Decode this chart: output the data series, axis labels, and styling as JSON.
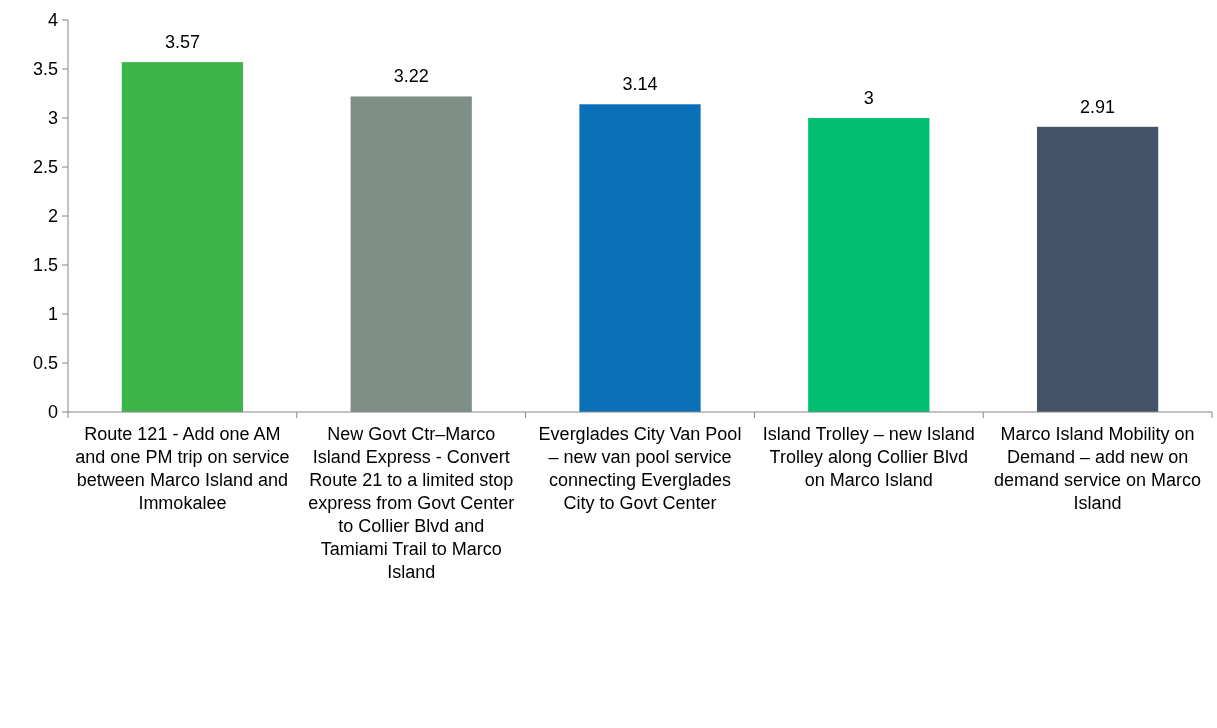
{
  "chart_data": {
    "type": "bar",
    "categories": [
      "Route 121 - Add one AM and one PM trip on service between Marco Island and Immokalee",
      "New Govt Ctr–Marco Island Express - Convert Route 21 to a limited stop express from Govt Center to Collier Blvd and Tamiami Trail to Marco Island",
      "Everglades City Van Pool – new van pool service connecting Everglades City to Govt Center",
      "Island Trolley – new Island Trolley along Collier Blvd on Marco Island",
      "Marco Island Mobility on Demand – add new on demand service on Marco Island"
    ],
    "values": [
      3.57,
      3.22,
      3.14,
      3,
      2.91
    ],
    "colors": [
      "#3cb44a",
      "#7f8f86",
      "#0a70b8",
      "#00bf6f",
      "#435266"
    ],
    "ylim": [
      0,
      4
    ],
    "yticks": [
      0,
      0.5,
      1,
      1.5,
      2,
      2.5,
      3,
      3.5,
      4
    ],
    "data_labels": true
  }
}
